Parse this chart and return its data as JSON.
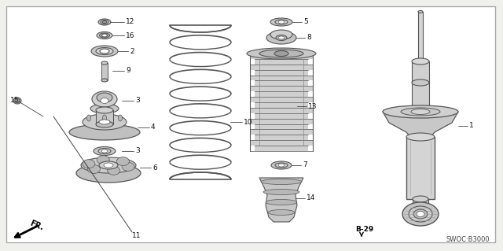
{
  "bg_color": "#f0f0ec",
  "border_color": "#999999",
  "part_color": "#d4d4d4",
  "part_outline": "#555555",
  "white": "#ffffff",
  "dark": "#333333",
  "label_color": "#111111",
  "diagram_code": "SWOC-B3000"
}
